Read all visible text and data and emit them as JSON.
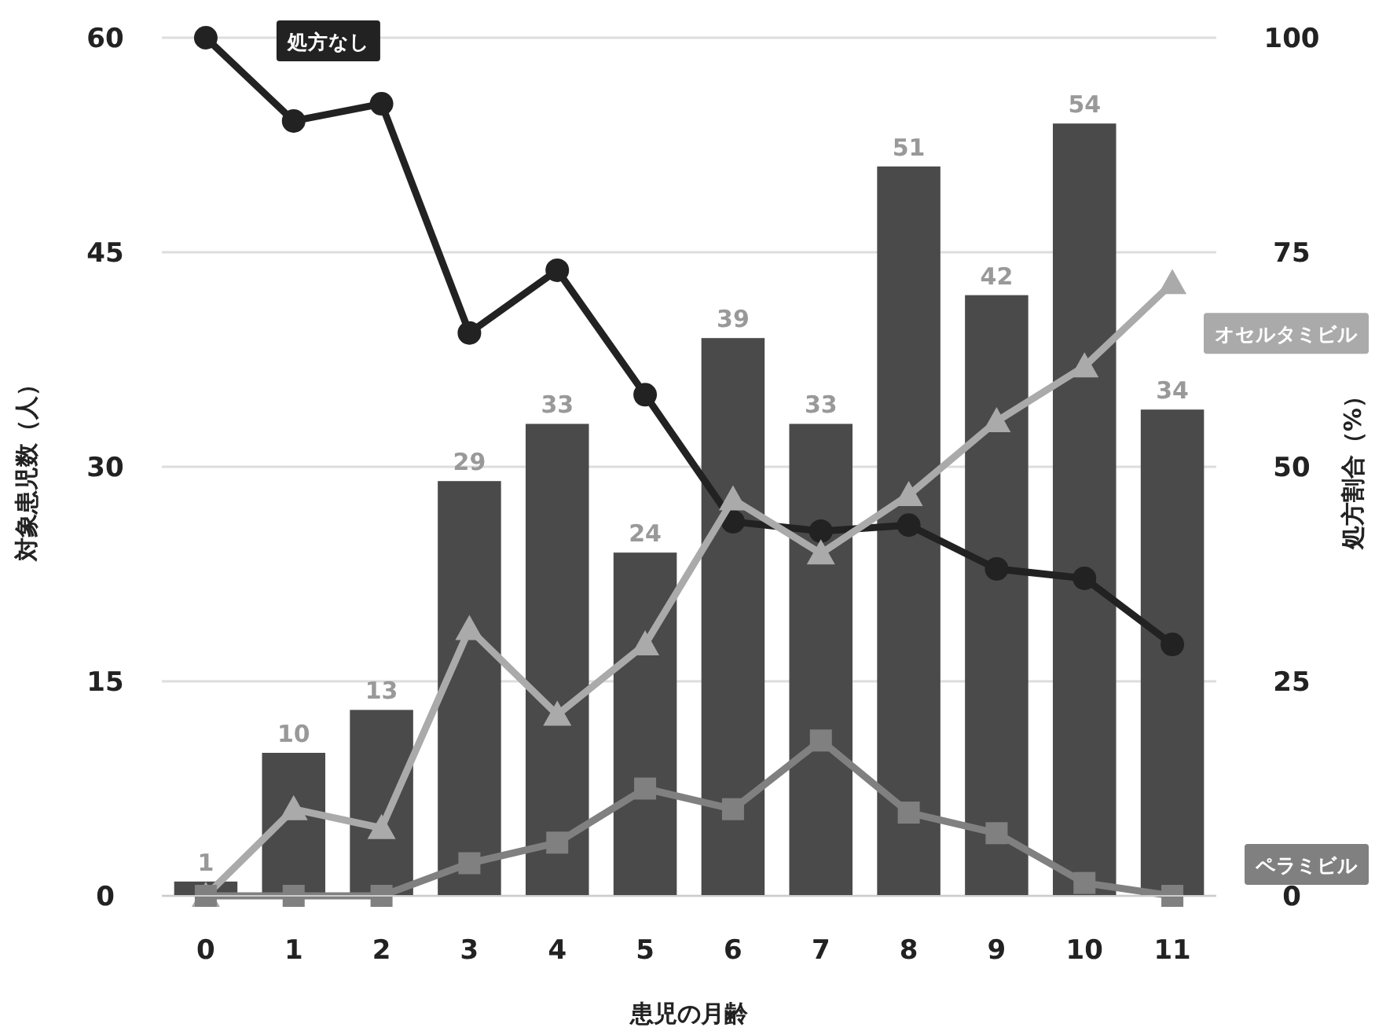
{
  "chart_data": {
    "type": "bar",
    "xlabel": "患児の月齢",
    "ylabel": "対象患児数（人）",
    "y2label": "処方割合（%）",
    "categories": [
      "0",
      "1",
      "2",
      "3",
      "4",
      "5",
      "6",
      "7",
      "8",
      "9",
      "10",
      "11"
    ],
    "ylim": [
      0,
      60
    ],
    "yticks": [
      0,
      15,
      30,
      45,
      60
    ],
    "y2lim": [
      0,
      100
    ],
    "y2ticks": [
      0,
      25,
      50,
      75,
      100
    ],
    "grid": "y",
    "series": [
      {
        "color": "#4a4a4a",
        "values": [
          1,
          10,
          13,
          29,
          33,
          24,
          39,
          33,
          51,
          42,
          54,
          34
        ],
        "value_labels": [
          "1",
          "10",
          "13",
          "29",
          "33",
          "24",
          "39",
          "33",
          "51",
          "42",
          "54",
          "34"
        ]
      },
      {
        "type": "line",
        "name": "処方なし",
        "axis": "y2",
        "color": "#222222",
        "marker": "circle",
        "values": [
          100,
          90.3,
          92.3,
          65.6,
          72.9,
          58.4,
          43.6,
          42.5,
          43.2,
          38.1,
          37.0,
          29.3
        ]
      },
      {
        "type": "line",
        "name": "オセルタミビル",
        "axis": "y2",
        "color": "#aaaaaa",
        "marker": "triangle",
        "values": [
          0,
          10.1,
          7.9,
          31.1,
          21.1,
          29.3,
          46.2,
          39.9,
          46.7,
          55.3,
          61.7,
          71.4
        ]
      },
      {
        "type": "line",
        "name": "ペラミビル",
        "axis": "y2",
        "color": "#808080",
        "marker": "square",
        "values": [
          0,
          0,
          0,
          3.8,
          6.2,
          12.5,
          10.1,
          18.1,
          9.7,
          7.3,
          1.5,
          0
        ]
      }
    ]
  }
}
